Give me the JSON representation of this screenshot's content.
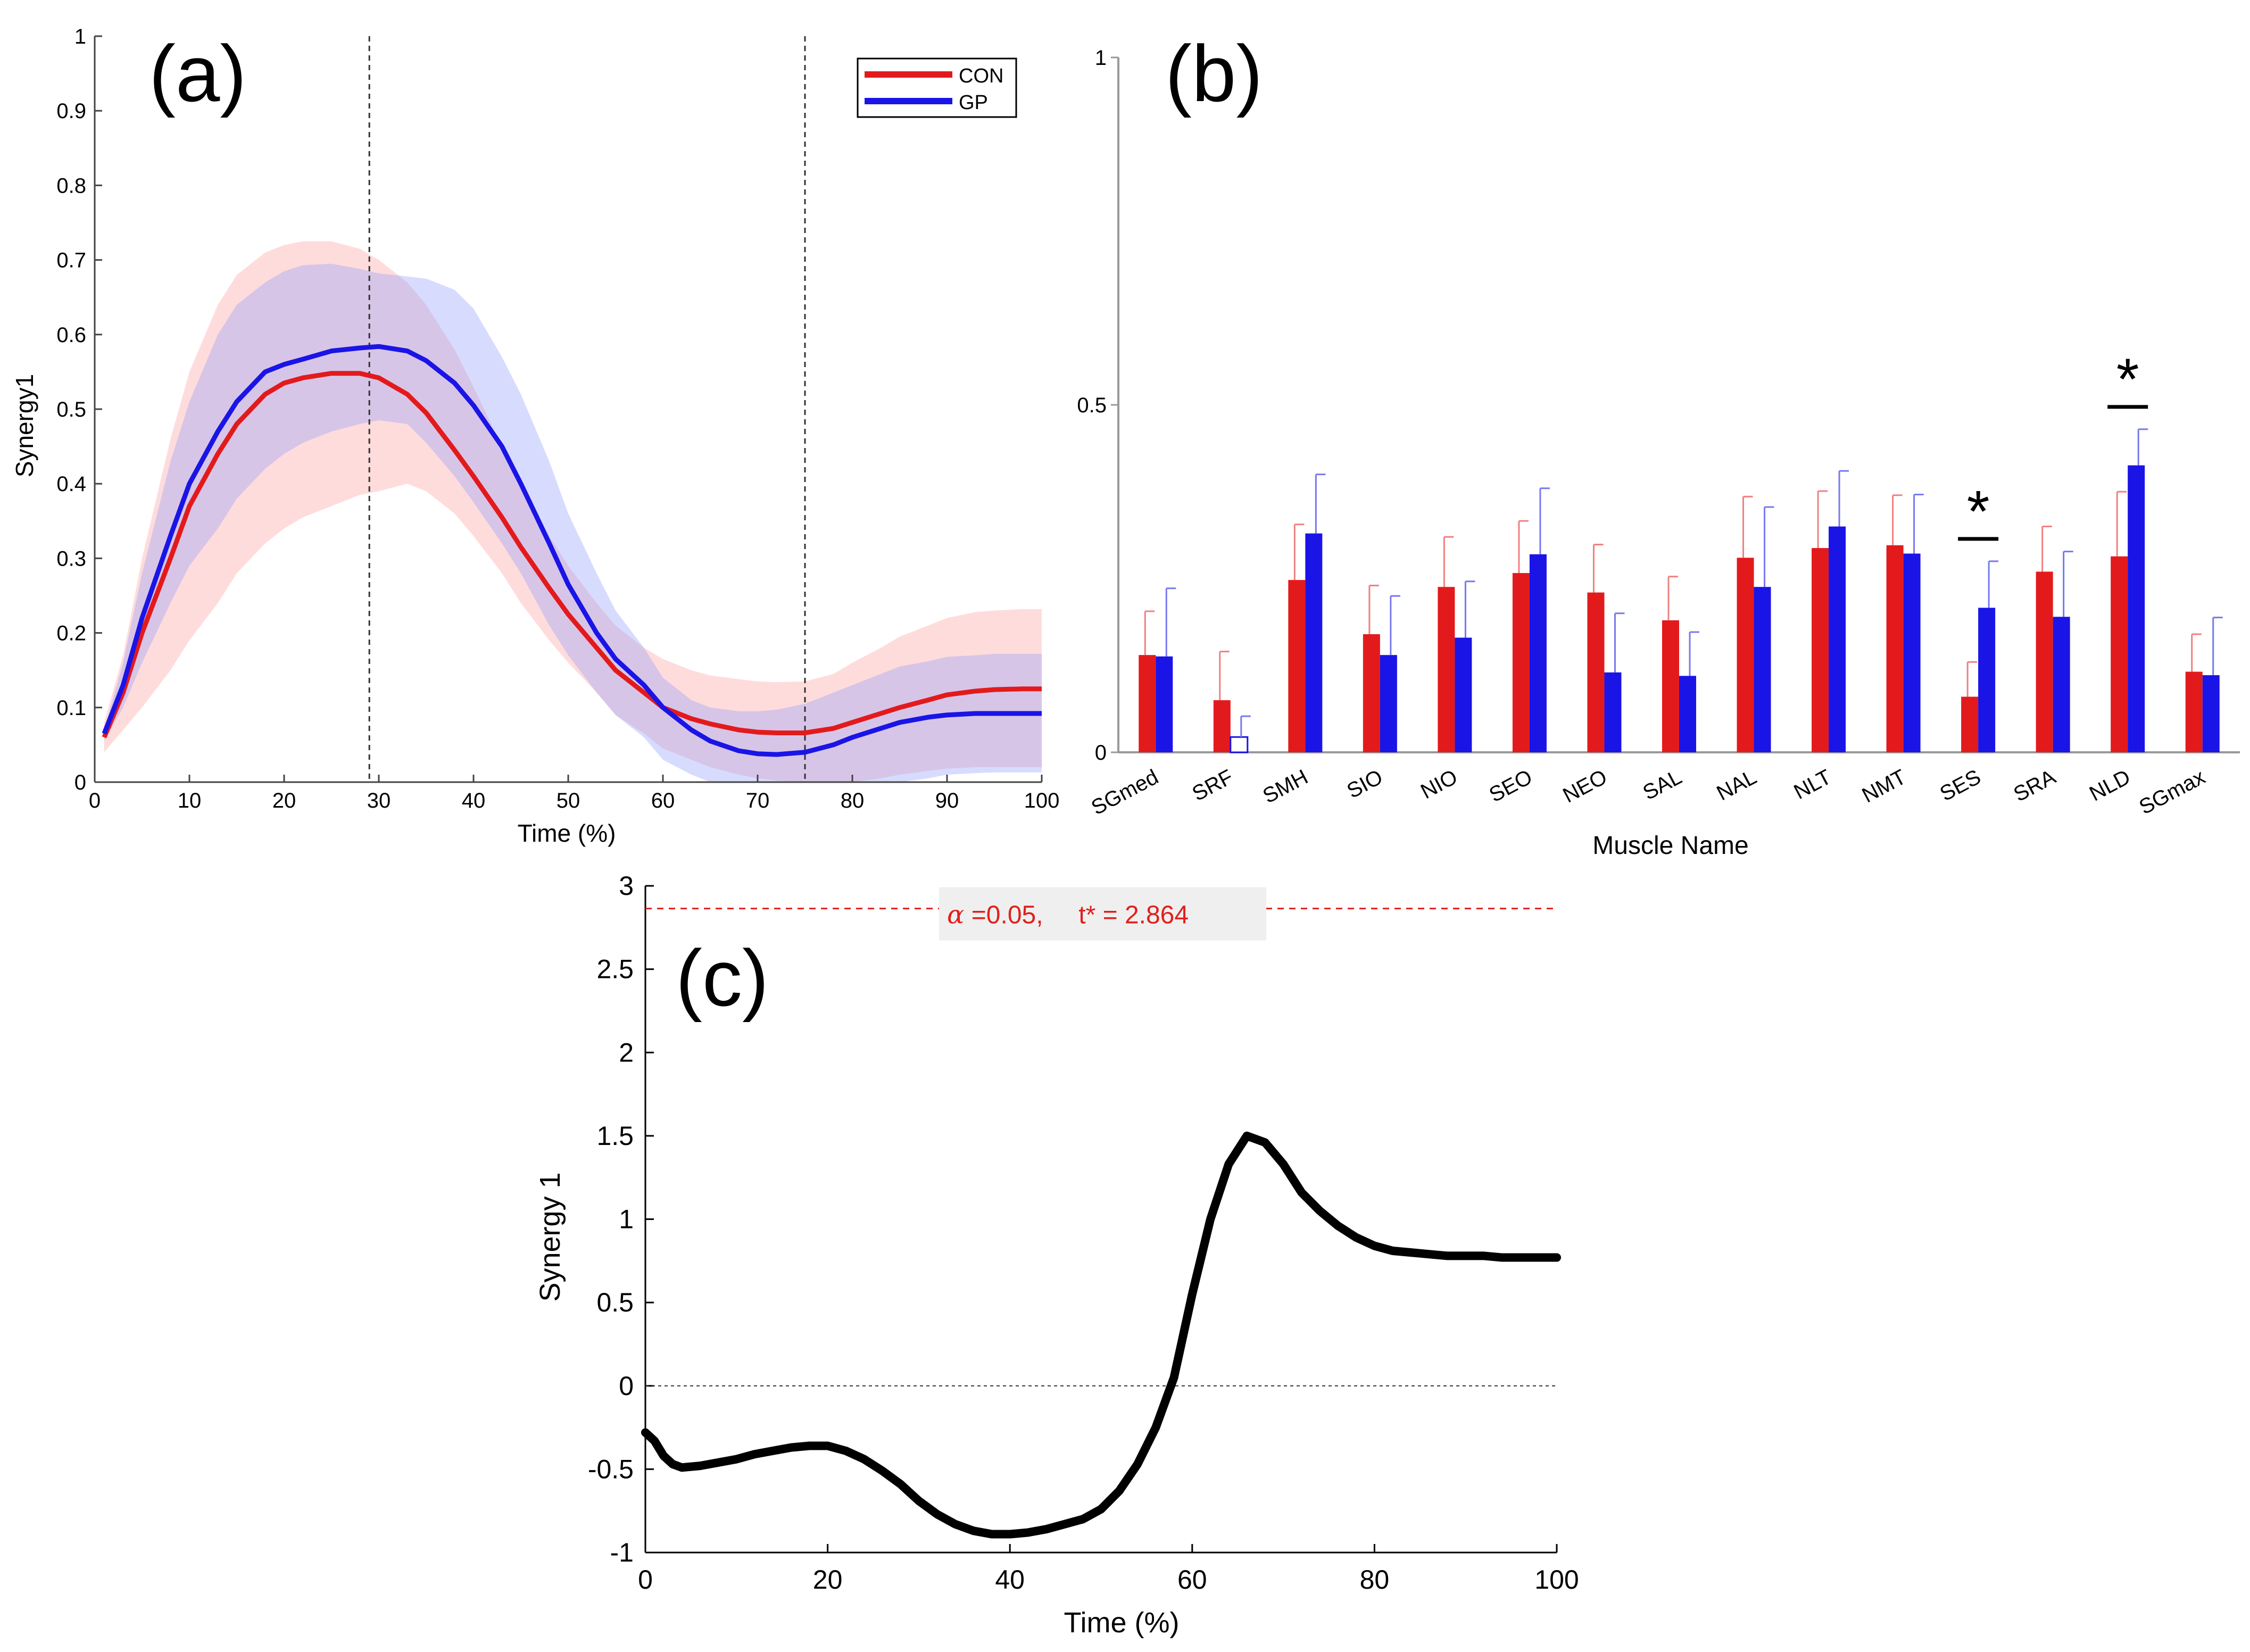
{
  "panel_labels": {
    "a": "(a)",
    "b": "(b)",
    "c": "(c)"
  },
  "colors": {
    "con": "#e31a1c",
    "gp": "#1a14e6",
    "con_band": "#ff9c9c",
    "gp_band": "#8c9cff",
    "line_c": "#000000",
    "threshold": "#e0201c"
  },
  "chart_data": [
    {
      "id": "a",
      "type": "line",
      "title": "",
      "xlabel": "Time (%)",
      "ylabel": "Synergy1",
      "xlim": [
        0,
        100
      ],
      "ylim": [
        0,
        1
      ],
      "xticks": [
        "0",
        "10",
        "20",
        "30",
        "40",
        "50",
        "60",
        "70",
        "80",
        "90",
        "100"
      ],
      "yticks": [
        "0",
        "0.1",
        "0.2",
        "0.3",
        "0.4",
        "0.5",
        "0.6",
        "0.7",
        "0.8",
        "0.9",
        "1"
      ],
      "vlines": [
        29,
        75
      ],
      "legend": {
        "placement": "top-right",
        "entries": [
          "CON",
          "GP"
        ]
      },
      "x": [
        1,
        3,
        5,
        8,
        10,
        13,
        15,
        18,
        20,
        22,
        25,
        28,
        30,
        33,
        35,
        38,
        40,
        43,
        45,
        48,
        50,
        53,
        55,
        58,
        60,
        63,
        65,
        68,
        70,
        72,
        75,
        78,
        80,
        83,
        85,
        88,
        90,
        93,
        95,
        98,
        100
      ],
      "series": [
        {
          "name": "CON",
          "mean": [
            0.06,
            0.12,
            0.2,
            0.3,
            0.37,
            0.44,
            0.48,
            0.52,
            0.535,
            0.542,
            0.548,
            0.548,
            0.542,
            0.52,
            0.495,
            0.445,
            0.41,
            0.355,
            0.315,
            0.26,
            0.225,
            0.18,
            0.15,
            0.12,
            0.1,
            0.085,
            0.078,
            0.07,
            0.067,
            0.066,
            0.066,
            0.072,
            0.08,
            0.092,
            0.1,
            0.11,
            0.117,
            0.122,
            0.124,
            0.125,
            0.125
          ],
          "upper": [
            0.08,
            0.17,
            0.3,
            0.46,
            0.55,
            0.64,
            0.68,
            0.71,
            0.72,
            0.725,
            0.725,
            0.715,
            0.7,
            0.67,
            0.64,
            0.58,
            0.53,
            0.45,
            0.4,
            0.33,
            0.29,
            0.24,
            0.21,
            0.18,
            0.165,
            0.15,
            0.143,
            0.138,
            0.135,
            0.134,
            0.135,
            0.145,
            0.16,
            0.18,
            0.195,
            0.21,
            0.22,
            0.228,
            0.23,
            0.232,
            0.232
          ],
          "lower": [
            0.04,
            0.07,
            0.1,
            0.15,
            0.19,
            0.24,
            0.28,
            0.32,
            0.34,
            0.355,
            0.37,
            0.385,
            0.39,
            0.4,
            0.39,
            0.36,
            0.33,
            0.28,
            0.24,
            0.19,
            0.16,
            0.12,
            0.09,
            0.065,
            0.045,
            0.03,
            0.02,
            0.01,
            0.005,
            0.002,
            0.0,
            0.0,
            0.0,
            0.005,
            0.01,
            0.015,
            0.018,
            0.02,
            0.02,
            0.02,
            0.02
          ]
        },
        {
          "name": "GP",
          "mean": [
            0.065,
            0.13,
            0.22,
            0.33,
            0.4,
            0.47,
            0.51,
            0.55,
            0.56,
            0.567,
            0.578,
            0.582,
            0.584,
            0.578,
            0.565,
            0.535,
            0.505,
            0.45,
            0.4,
            0.32,
            0.265,
            0.2,
            0.165,
            0.13,
            0.1,
            0.07,
            0.055,
            0.042,
            0.038,
            0.037,
            0.04,
            0.05,
            0.06,
            0.072,
            0.08,
            0.087,
            0.09,
            0.092,
            0.092,
            0.092,
            0.092
          ],
          "upper": [
            0.07,
            0.16,
            0.28,
            0.43,
            0.51,
            0.6,
            0.64,
            0.67,
            0.685,
            0.693,
            0.695,
            0.688,
            0.682,
            0.678,
            0.675,
            0.66,
            0.635,
            0.57,
            0.52,
            0.43,
            0.36,
            0.28,
            0.23,
            0.18,
            0.14,
            0.11,
            0.1,
            0.095,
            0.095,
            0.097,
            0.105,
            0.12,
            0.13,
            0.145,
            0.155,
            0.162,
            0.168,
            0.17,
            0.172,
            0.172,
            0.172
          ],
          "lower": [
            0.055,
            0.1,
            0.16,
            0.24,
            0.29,
            0.34,
            0.38,
            0.42,
            0.44,
            0.455,
            0.47,
            0.48,
            0.485,
            0.48,
            0.455,
            0.41,
            0.375,
            0.32,
            0.28,
            0.21,
            0.17,
            0.12,
            0.09,
            0.06,
            0.03,
            0.01,
            0.0,
            0.0,
            0.0,
            0.0,
            0.0,
            0.0,
            0.0,
            0.0,
            0.0,
            0.005,
            0.01,
            0.012,
            0.013,
            0.013,
            0.013
          ]
        }
      ]
    },
    {
      "id": "b",
      "type": "bar",
      "xlabel": "Muscle Name",
      "ylabel": "",
      "ylim": [
        0,
        1
      ],
      "yticks": [
        "0",
        "0.5",
        "1"
      ],
      "categories": [
        "SGmed",
        "SRF",
        "SMH",
        "SIO",
        "NIO",
        "SEO",
        "NEO",
        "SAL",
        "NAL",
        "NLT",
        "NMT",
        "SES",
        "SRA",
        "NLD",
        "SGmax"
      ],
      "series": [
        {
          "name": "CON",
          "values": [
            0.14,
            0.075,
            0.248,
            0.17,
            0.238,
            0.258,
            0.23,
            0.19,
            0.28,
            0.294,
            0.298,
            0.08,
            0.26,
            0.282,
            0.116
          ],
          "errors": [
            0.063,
            0.07,
            0.08,
            0.07,
            0.072,
            0.075,
            0.069,
            0.063,
            0.088,
            0.082,
            0.072,
            0.05,
            0.065,
            0.093,
            0.054
          ]
        },
        {
          "name": "GP",
          "values": [
            0.138,
            0.022,
            0.315,
            0.14,
            0.165,
            0.285,
            0.115,
            0.11,
            0.238,
            0.325,
            0.286,
            0.208,
            0.195,
            0.413,
            0.111
          ],
          "errors": [
            0.098,
            0.03,
            0.085,
            0.085,
            0.081,
            0.095,
            0.085,
            0.063,
            0.115,
            0.08,
            0.085,
            0.067,
            0.094,
            0.052,
            0.083
          ]
        }
      ],
      "significance": [
        {
          "category": "SES",
          "label": "*"
        },
        {
          "category": "NLD",
          "label": "*"
        }
      ]
    },
    {
      "id": "c",
      "type": "line",
      "xlabel": "Time (%)",
      "ylabel": "Synergy 1",
      "xlim": [
        0,
        100
      ],
      "ylim": [
        -1,
        3
      ],
      "xticks": [
        "0",
        "20",
        "40",
        "60",
        "80",
        "100"
      ],
      "yticks": [
        "-1",
        "-0.5",
        "0",
        "0.5",
        "1",
        "1.5",
        "2",
        "2.5",
        "3"
      ],
      "threshold": 2.864,
      "threshold_label": {
        "alpha_symbol": "α",
        "text": " =0.05,     t* = 2.864"
      },
      "x": [
        0,
        1,
        2,
        3,
        4,
        6,
        8,
        10,
        12,
        14,
        16,
        18,
        20,
        22,
        24,
        26,
        28,
        30,
        32,
        34,
        36,
        38,
        40,
        42,
        44,
        46,
        48,
        50,
        52,
        54,
        56,
        58,
        60,
        62,
        64,
        66,
        68,
        70,
        72,
        74,
        76,
        78,
        80,
        82,
        84,
        86,
        88,
        90,
        92,
        94,
        96,
        98,
        100
      ],
      "values": [
        -0.28,
        -0.33,
        -0.42,
        -0.47,
        -0.49,
        -0.48,
        -0.46,
        -0.44,
        -0.41,
        -0.39,
        -0.37,
        -0.36,
        -0.36,
        -0.39,
        -0.44,
        -0.51,
        -0.59,
        -0.69,
        -0.77,
        -0.83,
        -0.87,
        -0.89,
        -0.89,
        -0.88,
        -0.86,
        -0.83,
        -0.8,
        -0.74,
        -0.63,
        -0.47,
        -0.25,
        0.05,
        0.55,
        1.0,
        1.33,
        1.5,
        1.46,
        1.33,
        1.16,
        1.05,
        0.96,
        0.89,
        0.84,
        0.81,
        0.8,
        0.79,
        0.78,
        0.78,
        0.78,
        0.77,
        0.77,
        0.77,
        0.77
      ]
    }
  ]
}
